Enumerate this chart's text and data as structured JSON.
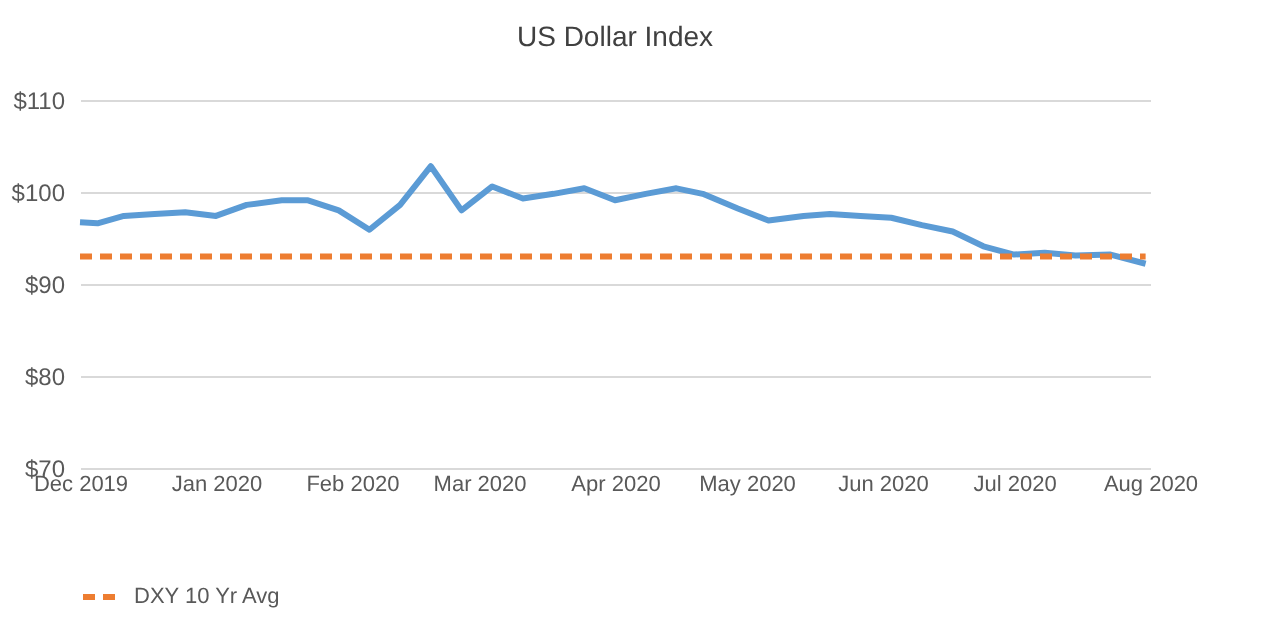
{
  "chart_data": {
    "type": "line",
    "title": "US Dollar Index",
    "x": [
      "2019-12-01",
      "2019-12-05",
      "2019-12-11",
      "2019-12-18",
      "2019-12-25",
      "2020-01-01",
      "2020-01-08",
      "2020-01-16",
      "2020-01-22",
      "2020-01-29",
      "2020-02-05",
      "2020-02-12",
      "2020-02-19",
      "2020-02-26",
      "2020-03-04",
      "2020-03-11",
      "2020-03-18",
      "2020-03-25",
      "2020-04-01",
      "2020-04-08",
      "2020-04-15",
      "2020-04-21",
      "2020-04-29",
      "2020-05-06",
      "2020-05-14",
      "2020-05-20",
      "2020-05-27",
      "2020-06-03",
      "2020-06-10",
      "2020-06-17",
      "2020-06-24",
      "2020-07-01",
      "2020-07-08",
      "2020-07-15",
      "2020-07-23",
      "2020-07-31"
    ],
    "series": [
      {
        "color": "#5b9bd5",
        "line_style": "solid",
        "values": [
          96.7,
          96.6,
          97.4,
          97.6,
          97.8,
          97.4,
          98.6,
          99.1,
          99.1,
          98.0,
          95.9,
          98.6,
          102.8,
          98.0,
          100.6,
          99.3,
          99.8,
          100.4,
          99.1,
          99.8,
          100.4,
          99.8,
          98.2,
          96.9,
          97.4,
          97.6,
          97.4,
          97.2,
          96.4,
          95.7,
          94.1,
          93.2,
          93.4,
          93.1,
          93.2,
          92.2
        ]
      },
      {
        "name": "DXY 10 Yr Avg",
        "color": "#ed7d31",
        "line_style": "dashed",
        "x": [
          "2019-12-01",
          "2020-07-31"
        ],
        "values": [
          93.0,
          93.0
        ]
      }
    ],
    "xlim": [
      "2019-12-01",
      "2020-08-01"
    ],
    "xticks": [
      {
        "value": "2019-12-01",
        "label": "Dec 2019"
      },
      {
        "value": "2020-01-01",
        "label": "Jan 2020"
      },
      {
        "value": "2020-02-01",
        "label": "Feb 2020"
      },
      {
        "value": "2020-03-01",
        "label": "Mar 2020"
      },
      {
        "value": "2020-04-01",
        "label": "Apr 2020"
      },
      {
        "value": "2020-05-01",
        "label": "May 2020"
      },
      {
        "value": "2020-06-01",
        "label": "Jun 2020"
      },
      {
        "value": "2020-07-01",
        "label": "Jul 2020"
      },
      {
        "value": "2020-08-01",
        "label": "Aug 2020"
      }
    ],
    "ylim": [
      70,
      110
    ],
    "yticks": [
      {
        "value": 70,
        "label": "$70"
      },
      {
        "value": 80,
        "label": "$80"
      },
      {
        "value": 90,
        "label": "$90"
      },
      {
        "value": 100,
        "label": "$100"
      },
      {
        "value": 110,
        "label": "$110"
      }
    ],
    "grid": "y",
    "legend": "bottom",
    "marker": "none"
  }
}
